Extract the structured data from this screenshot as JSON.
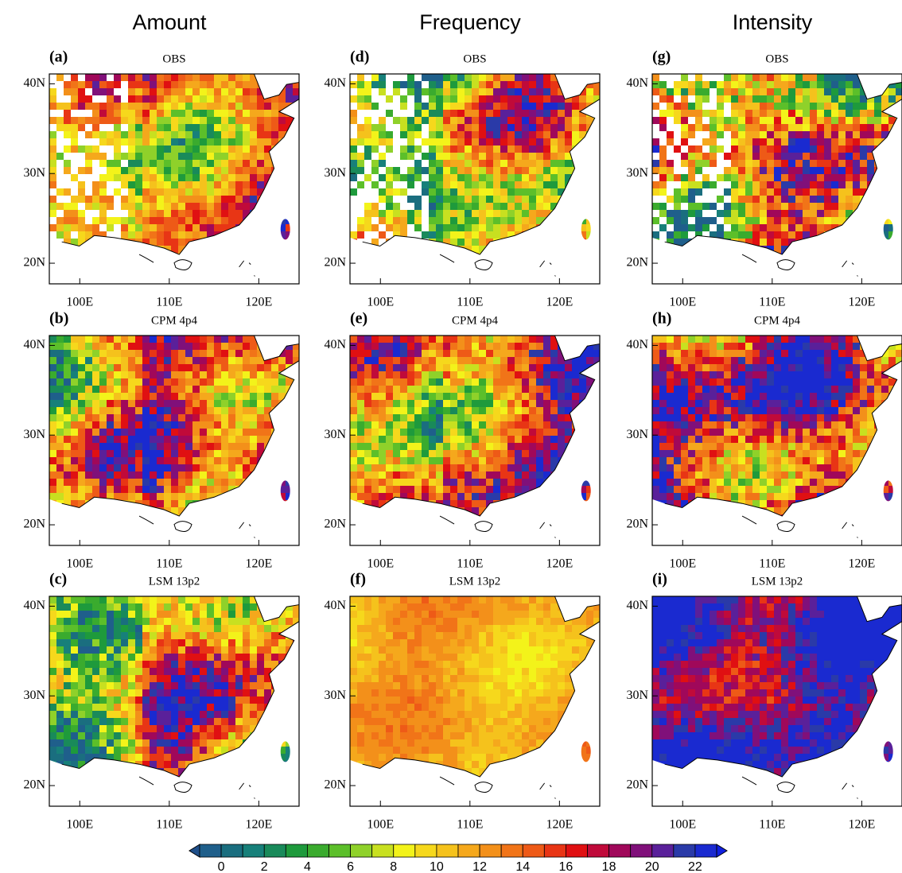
{
  "column_titles": [
    "Amount",
    "Frequency",
    "Intensity"
  ],
  "panels": [
    {
      "label": "(a)",
      "title": "OBS"
    },
    {
      "label": "(d)",
      "title": "OBS"
    },
    {
      "label": "(g)",
      "title": "OBS"
    },
    {
      "label": "(b)",
      "title": "CPM 4p4"
    },
    {
      "label": "(e)",
      "title": "CPM 4p4"
    },
    {
      "label": "(h)",
      "title": "CPM 4p4"
    },
    {
      "label": "(c)",
      "title": "LSM 13p2"
    },
    {
      "label": "(f)",
      "title": "LSM 13p2"
    },
    {
      "label": "(i)",
      "title": "LSM 13p2"
    }
  ],
  "map_axes": {
    "xlim": [
      96.6,
      124.5
    ],
    "ylim": [
      17.7,
      41.1
    ],
    "xticks": [
      {
        "value": 100,
        "label": "100E"
      },
      {
        "value": 110,
        "label": "110E"
      },
      {
        "value": 120,
        "label": "120E"
      }
    ],
    "yticks": [
      {
        "value": 20,
        "label": "20N"
      },
      {
        "value": 30,
        "label": "30N"
      },
      {
        "value": 40,
        "label": "40N"
      }
    ]
  },
  "colorbar": {
    "ticks": [
      0,
      2,
      4,
      6,
      8,
      10,
      12,
      14,
      16,
      18,
      20,
      22
    ],
    "colors": [
      "#1f5f8b",
      "#1a6e7f",
      "#17807a",
      "#198a5a",
      "#1e9a3c",
      "#3aab2e",
      "#5cbf2a",
      "#8fd12a",
      "#c8e020",
      "#f3f31a",
      "#f6d81c",
      "#f5c21c",
      "#f5a81c",
      "#f3901a",
      "#f17418",
      "#ee5a17",
      "#e83515",
      "#e01012",
      "#c00a3a",
      "#a0085a",
      "#80107a",
      "#5a209a",
      "#2a3aa8",
      "#1a2ad0"
    ],
    "under_color": "#1f4f8a",
    "over_color": "#1020e0"
  }
}
